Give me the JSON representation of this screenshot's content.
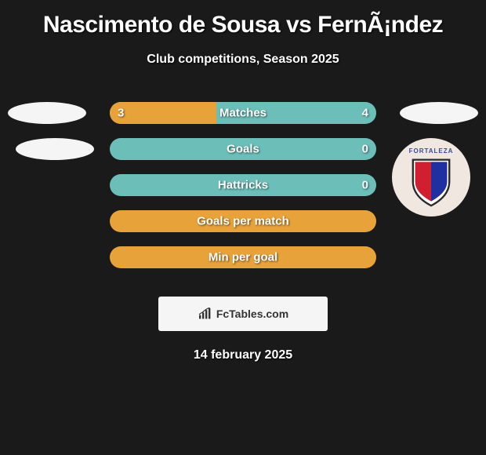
{
  "title": "Nascimento de Sousa vs FernÃ¡ndez",
  "subtitle": "Club competitions, Season 2025",
  "date": "14 february 2025",
  "footer": {
    "text": "FcTables.com"
  },
  "colors": {
    "background": "#1a1a1a",
    "accent_orange": "#e8a23a",
    "accent_teal": "#6bbfb8",
    "bar_bg_orange": "#e8a23a",
    "bar_bg_teal": "#6bbfb8",
    "avatar_bg": "#f5f5f5",
    "text": "#ffffff"
  },
  "stats": [
    {
      "label": "Matches",
      "left_value": "3",
      "right_value": "4",
      "left_pct": 40,
      "right_pct": 60,
      "left_color": "#e8a23a",
      "right_color": "#6bbfb8",
      "show_values": true
    },
    {
      "label": "Goals",
      "left_value": "",
      "right_value": "0",
      "left_pct": 0,
      "right_pct": 100,
      "left_color": "#e8a23a",
      "right_color": "#6bbfb8",
      "show_values": true,
      "bg_color": "#6bbfb8"
    },
    {
      "label": "Hattricks",
      "left_value": "",
      "right_value": "0",
      "left_pct": 0,
      "right_pct": 100,
      "left_color": "#e8a23a",
      "right_color": "#6bbfb8",
      "show_values": true,
      "bg_color": "#6bbfb8"
    },
    {
      "label": "Goals per match",
      "left_value": "",
      "right_value": "",
      "left_pct": 0,
      "right_pct": 0,
      "left_color": "#e8a23a",
      "right_color": "#6bbfb8",
      "show_values": false,
      "bg_color": "#e8a23a"
    },
    {
      "label": "Min per goal",
      "left_value": "",
      "right_value": "",
      "left_pct": 0,
      "right_pct": 0,
      "left_color": "#e8a23a",
      "right_color": "#6bbfb8",
      "show_values": false,
      "bg_color": "#e8a23a"
    }
  ],
  "club_badge": {
    "name": "FORTALEZA",
    "shield_colors": {
      "left": "#d02030",
      "right": "#2030a0",
      "outline": "#2a2a2a"
    }
  }
}
